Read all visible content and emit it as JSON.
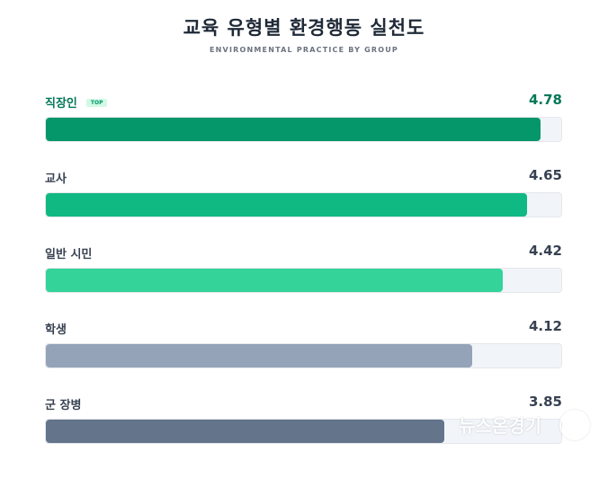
{
  "chart_data": {
    "type": "bar",
    "orientation": "horizontal",
    "title": "교육 유형별 환경행동 실천도",
    "subtitle": "ENVIRONMENTAL PRACTICE BY GROUP",
    "categories": [
      "직장인",
      "교사",
      "일반 시민",
      "학생",
      "군 장병"
    ],
    "values": [
      4.78,
      4.65,
      4.42,
      4.12,
      3.85
    ],
    "value_labels": [
      "4.78",
      "4.65",
      "4.42",
      "4.12",
      "3.85"
    ],
    "badge": {
      "category_index": 0,
      "text": "TOP"
    },
    "xlim": [
      0,
      5
    ],
    "colors": [
      "#059669",
      "#10b981",
      "#34d399",
      "#94a3b8",
      "#64748b"
    ],
    "value_colors": [
      "#047857",
      "#374151",
      "#374151",
      "#374151",
      "#374151"
    ],
    "category_colors": [
      "#047857",
      "#374151",
      "#374151",
      "#374151",
      "#374151"
    ],
    "grid": false,
    "legend": "none"
  },
  "watermark": {
    "text": "뉴스온경기"
  }
}
